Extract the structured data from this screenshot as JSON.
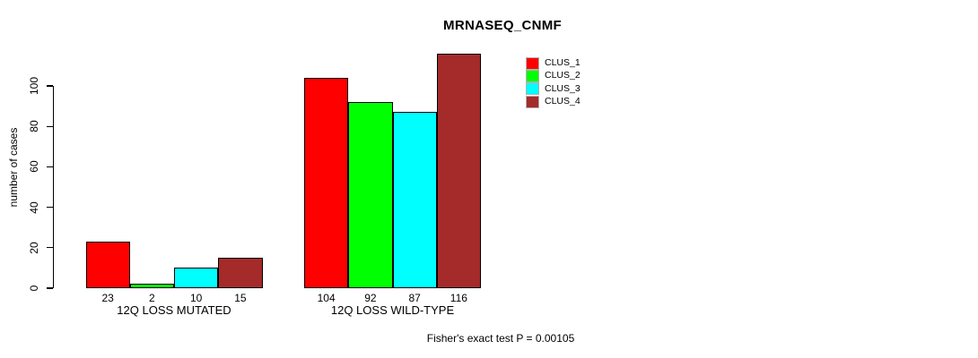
{
  "title": "MRNASEQ_CNMF",
  "y_axis": {
    "label": "number of cases",
    "ticks": [
      0,
      20,
      40,
      60,
      80,
      100
    ]
  },
  "footer": "Fisher's exact test P = 0.00105",
  "legend": [
    {
      "label": "CLUS_1",
      "color": "#FF0000"
    },
    {
      "label": "CLUS_2",
      "color": "#00FF00"
    },
    {
      "label": "CLUS_3",
      "color": "#00FFFF"
    },
    {
      "label": "CLUS_4",
      "color": "#A52A2A"
    }
  ],
  "chart_data": {
    "type": "bar",
    "title": "MRNASEQ_CNMF",
    "xlabel": "",
    "ylabel": "number of cases",
    "ylim": [
      0,
      116
    ],
    "yticks": [
      0,
      20,
      40,
      60,
      80,
      100
    ],
    "categories": [
      "12Q LOSS MUTATED",
      "12Q LOSS WILD-TYPE"
    ],
    "series": [
      {
        "name": "CLUS_1",
        "color": "#FF0000",
        "values": [
          23,
          104
        ]
      },
      {
        "name": "CLUS_2",
        "color": "#00FF00",
        "values": [
          2,
          92
        ]
      },
      {
        "name": "CLUS_3",
        "color": "#00FFFF",
        "values": [
          10,
          87
        ]
      },
      {
        "name": "CLUS_4",
        "color": "#A52A2A",
        "values": [
          15,
          116
        ]
      }
    ],
    "bar_value_labels": [
      [
        23,
        2,
        10,
        15
      ],
      [
        104,
        92,
        87,
        116
      ]
    ],
    "annotation": "Fisher's exact test P = 0.00105",
    "legend_position": "top-right",
    "grid": false,
    "background": "#FFFFFF",
    "bar_border_color": "#000000"
  }
}
